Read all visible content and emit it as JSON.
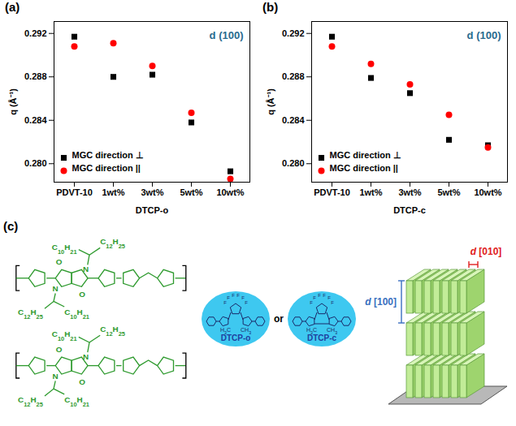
{
  "chart_data": [
    {
      "type": "scatter",
      "panel_label": "(a)",
      "x_label": "DTCP-o",
      "y_label": "q (Å⁻¹)",
      "categories": [
        "PDVT-10",
        "1wt%",
        "3wt%",
        "5wt%",
        "10wt%"
      ],
      "ylim": [
        0.2783,
        0.2931
      ],
      "yticks": [
        {
          "value": 0.28,
          "label": "0.280"
        },
        0.284,
        0.288,
        0.292
      ],
      "annotations": [
        "d (100)"
      ],
      "legend": "bottom-left",
      "grid": false,
      "series": [
        {
          "name": "MGC direction ⊥",
          "color": "#000000",
          "marker": "square",
          "values": [
            0.2917,
            0.288,
            0.2882,
            0.2838,
            0.2793
          ]
        },
        {
          "name": "MGC direction ||",
          "color": "#ff0000",
          "marker": "circle",
          "values": [
            0.2908,
            0.2911,
            0.289,
            0.2847,
            0.2786
          ]
        }
      ]
    },
    {
      "type": "scatter",
      "panel_label": "(b)",
      "x_label": "DTCP-c",
      "y_label": "q (Å⁻¹)",
      "categories": [
        "PDVT-10",
        "1wt%",
        "3wt%",
        "5wt%",
        "10wt%"
      ],
      "ylim": [
        0.2783,
        0.2931
      ],
      "yticks": [
        {
          "value": 0.28,
          "label": "0.280"
        },
        0.284,
        0.288,
        0.292
      ],
      "annotations": [
        "d (100)"
      ],
      "legend": "bottom-left",
      "grid": false,
      "series": [
        {
          "name": "MGC direction ⊥",
          "color": "#000000",
          "marker": "square",
          "values": [
            0.2917,
            0.2879,
            0.2865,
            0.2822,
            0.2817
          ]
        },
        {
          "name": "MGC direction ||",
          "color": "#ff0000",
          "marker": "circle",
          "values": [
            0.2908,
            0.2892,
            0.2873,
            0.2845,
            0.2815
          ]
        }
      ]
    }
  ],
  "panel_c": {
    "label": "(c)",
    "polymers": [
      {
        "labels": [
          "O",
          "N",
          "C10H21",
          "C12H25",
          "O",
          "N",
          "C12H25",
          "C10H21"
        ]
      },
      {
        "labels": [
          "O",
          "N",
          "C10H21",
          "C12H25",
          "O",
          "N",
          "C12H25",
          "C10H21"
        ]
      }
    ],
    "small_molecules": [
      {
        "name": "DTCP-o",
        "labels": [
          "F",
          "F",
          "F",
          "F",
          "F",
          "F",
          "H3C",
          "CH3"
        ]
      },
      {
        "name": "DTCP-c",
        "labels": [
          "F",
          "F",
          "F",
          "F",
          "F",
          "F",
          "H3C",
          "CH3"
        ]
      }
    ],
    "connector": "or",
    "stack": {
      "d_010": "d [010]",
      "d_100": "d [100]"
    }
  }
}
